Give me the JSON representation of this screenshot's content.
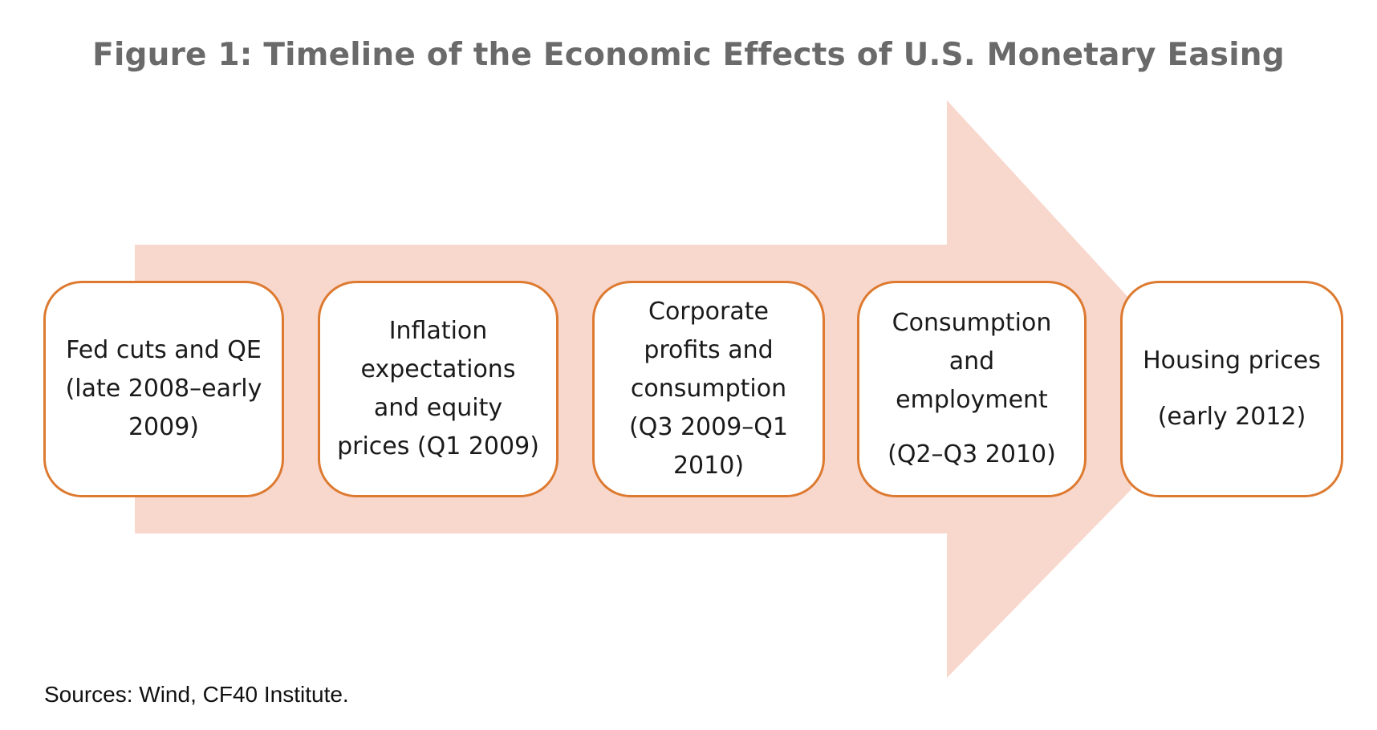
{
  "title": "Figure 1: Timeline of the Economic Effects of U.S. Monetary Easing",
  "colors": {
    "arrow_fill": "#f8d7cd",
    "box_border": "#dd7a30",
    "title_text": "#6a6a6a"
  },
  "stages": [
    {
      "lines": [
        "Fed cuts and QE",
        "(late 2008–early",
        "2009)"
      ]
    },
    {
      "lines": [
        "Inflation",
        "expectations",
        "and equity",
        "prices (Q1 2009)"
      ]
    },
    {
      "lines": [
        "Corporate",
        "profits and",
        "consumption",
        "(Q3 2009–Q1",
        "2010)"
      ]
    },
    {
      "lines": [
        "Consumption",
        "and",
        "employment",
        "(Q2–Q3 2010)"
      ]
    },
    {
      "lines": [
        "Housing prices",
        "(early 2012)"
      ]
    }
  ],
  "source": "Sources: Wind, CF40 Institute."
}
